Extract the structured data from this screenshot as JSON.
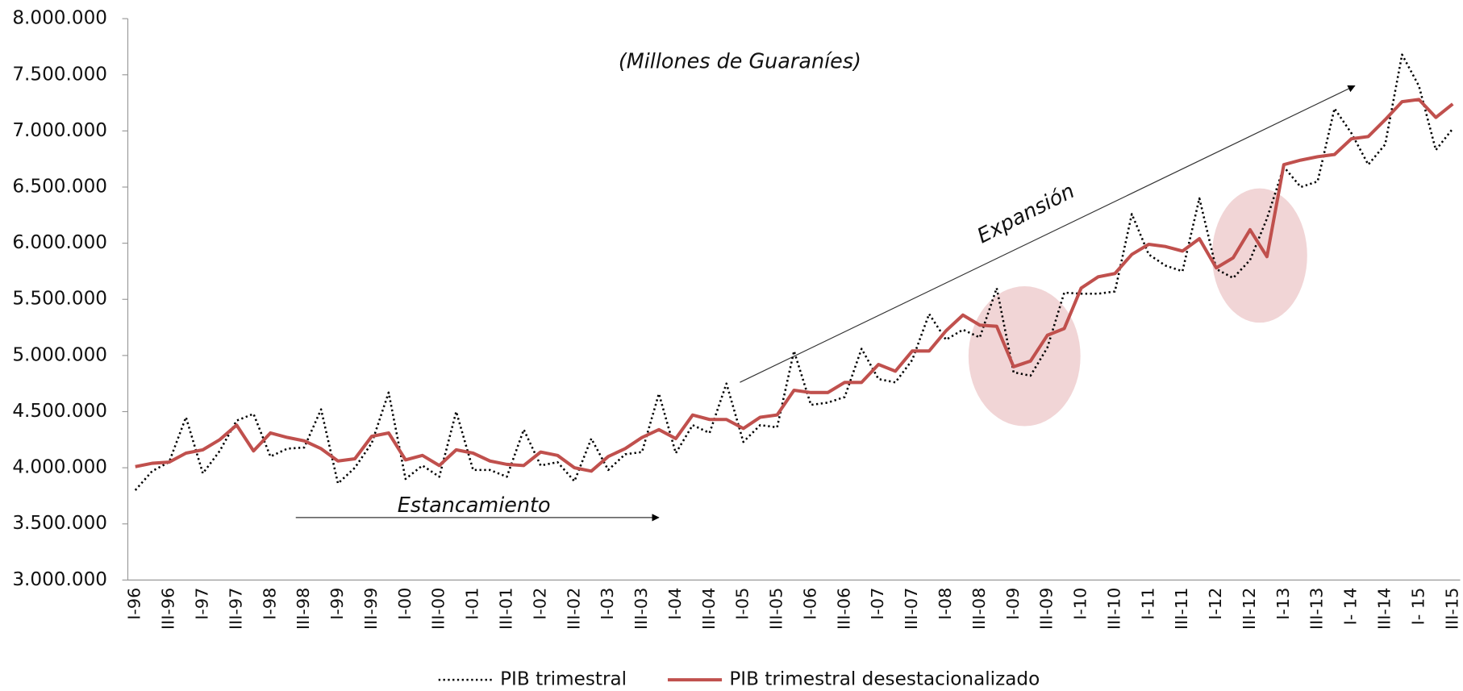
{
  "chart_data": {
    "type": "line",
    "annotations": [
      "(Millones de Guaraníes)",
      "Expansión",
      "Estancamiento"
    ],
    "categories": [
      "I-96",
      null,
      "III-96",
      null,
      "I-97",
      null,
      "III-97",
      null,
      "I-98",
      null,
      "III-98",
      null,
      "I-99",
      null,
      "III-99",
      null,
      "I-00",
      null,
      "III-00",
      null,
      "I-01",
      null,
      "III-01",
      null,
      "I-02",
      null,
      "III-02",
      null,
      "I-03",
      null,
      "III-03",
      null,
      "I-04",
      null,
      "III-04",
      null,
      "I-05",
      null,
      "III-05",
      null,
      "I-06",
      null,
      "III-06",
      null,
      "I-07",
      null,
      "III-07",
      null,
      "I-08",
      null,
      "III-08",
      null,
      "I-09",
      null,
      "III-09",
      null,
      "I-10",
      null,
      "III-10",
      null,
      "I-11",
      null,
      "III-11",
      null,
      "I-12",
      null,
      "III-12",
      null,
      "I-13",
      null,
      "III-13",
      null,
      "I- 14",
      null,
      "III-14",
      null,
      "I- 15",
      null,
      "III-15"
    ],
    "series": [
      {
        "name": "PIB trimestral",
        "color": "#000000",
        "linestyle": "dotted",
        "values": [
          3800000,
          3970000,
          4050000,
          4450000,
          3950000,
          4150000,
          4420000,
          4480000,
          4100000,
          4170000,
          4180000,
          4520000,
          3860000,
          4000000,
          4220000,
          4670000,
          3900000,
          4020000,
          3920000,
          4500000,
          3980000,
          3980000,
          3920000,
          4340000,
          4020000,
          4050000,
          3880000,
          4260000,
          3980000,
          4120000,
          4140000,
          4660000,
          4130000,
          4380000,
          4310000,
          4750000,
          4230000,
          4380000,
          4360000,
          5040000,
          4560000,
          4580000,
          4630000,
          5060000,
          4790000,
          4760000,
          4960000,
          5370000,
          5140000,
          5230000,
          5160000,
          5600000,
          4850000,
          4820000,
          5070000,
          5560000,
          5550000,
          5550000,
          5570000,
          6260000,
          5900000,
          5800000,
          5750000,
          6400000,
          5770000,
          5690000,
          5850000,
          6220000,
          6680000,
          6500000,
          6550000,
          7200000,
          6980000,
          6700000,
          6880000,
          7680000,
          7400000,
          6830000,
          7020000
        ]
      },
      {
        "name": "PIB trimestral desestacionalizado",
        "color": "#c0504d",
        "linestyle": "solid",
        "values": [
          4010000,
          4040000,
          4050000,
          4130000,
          4160000,
          4250000,
          4380000,
          4150000,
          4310000,
          4270000,
          4240000,
          4170000,
          4060000,
          4080000,
          4280000,
          4310000,
          4070000,
          4110000,
          4020000,
          4160000,
          4130000,
          4060000,
          4030000,
          4020000,
          4140000,
          4110000,
          4000000,
          3970000,
          4100000,
          4170000,
          4270000,
          4340000,
          4260000,
          4470000,
          4430000,
          4430000,
          4350000,
          4450000,
          4470000,
          4690000,
          4670000,
          4670000,
          4760000,
          4760000,
          4920000,
          4860000,
          5040000,
          5040000,
          5220000,
          5360000,
          5270000,
          5260000,
          4900000,
          4950000,
          5180000,
          5240000,
          5600000,
          5700000,
          5730000,
          5900000,
          5990000,
          5970000,
          5930000,
          6040000,
          5780000,
          5870000,
          6120000,
          5880000,
          6700000,
          6740000,
          6770000,
          6790000,
          6930000,
          6950000,
          7100000,
          7260000,
          7280000,
          7120000,
          7240000
        ]
      }
    ],
    "ylim": [
      3000000,
      8000000
    ],
    "yticks": [
      {
        "value": 3000000,
        "label": "3.000.000"
      },
      {
        "value": 3500000,
        "label": "3.500.000"
      },
      {
        "value": 4000000,
        "label": "4.000.000"
      },
      {
        "value": 4500000,
        "label": "4.500.000"
      },
      {
        "value": 5000000,
        "label": "5.000.000"
      },
      {
        "value": 5500000,
        "label": "5.500.000"
      },
      {
        "value": 6000000,
        "label": "6.000.000"
      },
      {
        "value": 6500000,
        "label": "6.500.000"
      },
      {
        "value": 7000000,
        "label": "7.000.000"
      },
      {
        "value": 7500000,
        "label": "7.500.000"
      },
      {
        "value": 8000000,
        "label": "8.000.000"
      }
    ],
    "grid": false
  }
}
